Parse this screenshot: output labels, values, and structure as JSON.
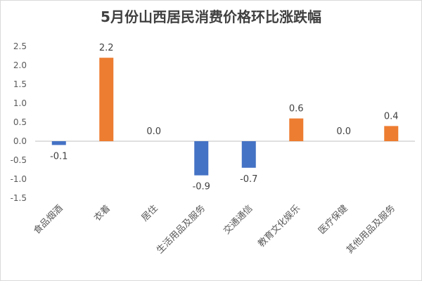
{
  "chart_data": {
    "type": "bar",
    "title": "5月份山西居民消费价格环比涨跌幅",
    "categories": [
      "食品烟酒",
      "衣着",
      "居住",
      "生活用品及服务",
      "交通通信",
      "教育文化娱乐",
      "医疗保健",
      "其他用品及服务"
    ],
    "values": [
      -0.1,
      2.2,
      0.0,
      -0.9,
      -0.7,
      0.6,
      0.0,
      0.4
    ],
    "data_labels": [
      "-0.1",
      "2.2",
      "0.0",
      "-0.9",
      "-0.7",
      "0.6",
      "0.0",
      "0.4"
    ],
    "y_ticks": [
      "2.5",
      "2.0",
      "1.5",
      "1.0",
      "0.5",
      "0.0",
      "-0.5",
      "-1.0",
      "-1.5"
    ],
    "y_tick_values": [
      2.5,
      2.0,
      1.5,
      1.0,
      0.5,
      0.0,
      -0.5,
      -1.0,
      -1.5
    ],
    "ylim": [
      -1.5,
      2.5
    ],
    "grid": false,
    "legend": "none",
    "colors": {
      "positive": "#ED7D31",
      "negative": "#4472C4",
      "axis": "#bfbfbf"
    }
  }
}
